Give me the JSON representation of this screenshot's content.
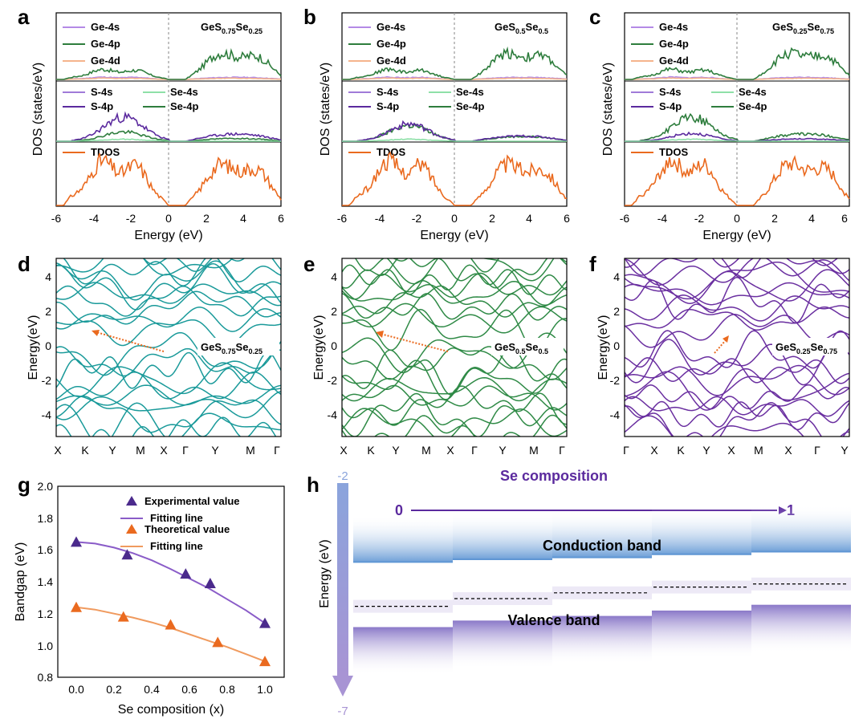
{
  "colors": {
    "ge4s": "#b48ae6",
    "ge4p": "#2e7d3d",
    "ge4d": "#f5b48c",
    "s4s": "#a07ad8",
    "s4p": "#5b2a9e",
    "se4s": "#8ee0a8",
    "se4p": "#2e7d3d",
    "tdos": "#ea6a1f",
    "fermi": "#9a9a9a",
    "band_d": "#1a9a9a",
    "band_e": "#2f8a46",
    "band_f": "#6a2fa0",
    "arrow": "#ea6a1f",
    "exp": "#4b2a8c",
    "expfit": "#8a5cc8",
    "theo": "#ea6a1f",
    "theofit": "#f09a5e",
    "cb": "#6fa0d8",
    "vb": "#8a78c8",
    "axis_h": "#8aa4dc",
    "secomp": "#5b2a9e"
  },
  "panels": {
    "a": {
      "label": "a",
      "formula": {
        "base": "GeS",
        "s1": "0.75",
        "mid": "Se",
        "s2": "0.25"
      }
    },
    "b": {
      "label": "b",
      "formula": {
        "base": "GeS",
        "s1": "0.5",
        "mid": "Se",
        "s2": "0.5"
      }
    },
    "c": {
      "label": "c",
      "formula": {
        "base": "GeS",
        "s1": "0.25",
        "mid": "Se",
        "s2": "0.75"
      }
    },
    "d": {
      "label": "d",
      "formula": {
        "base": "GeS",
        "s1": "0.75",
        "mid": "Se",
        "s2": "0.25"
      }
    },
    "e": {
      "label": "e",
      "formula": {
        "base": "GeS",
        "s1": "0.5",
        "mid": "Se",
        "s2": "0.5"
      }
    },
    "f": {
      "label": "f",
      "formula": {
        "base": "GeS",
        "s1": "0.25",
        "mid": "Se",
        "s2": "0.75"
      }
    },
    "g": {
      "label": "g"
    },
    "h": {
      "label": "h"
    }
  },
  "dos_common": {
    "ylabel": "DOS (states/eV)",
    "xlabel": "Energy (eV)",
    "xticks": [
      "-6",
      "-4",
      "-2",
      "0",
      "2",
      "4",
      "6"
    ],
    "legend_top": [
      "Ge-4s",
      "Ge-4p",
      "Ge-4d"
    ],
    "legend_mid": [
      "S-4s",
      "Se-4s",
      "S-4p",
      "Se-4p"
    ],
    "legend_bot": [
      "TDOS"
    ]
  },
  "band_common": {
    "ylabel": "Energy(eV)",
    "yticks": [
      "4",
      "2",
      "0",
      "-2",
      "-4"
    ],
    "xticks_de": [
      "X",
      "K",
      "Y",
      "M",
      "X",
      "Γ",
      "Y",
      "M",
      "Γ"
    ],
    "xticks_f": [
      "Γ",
      "X",
      "K",
      "Y",
      "X",
      "M",
      "X",
      "Γ",
      "Y"
    ]
  },
  "chart_data": [
    {
      "type": "scatter",
      "panel": "g",
      "xlabel": "Se composition (x)",
      "ylabel": "Bandgap (eV)",
      "xlim": [
        -0.1,
        1.1
      ],
      "ylim": [
        0.8,
        2.0
      ],
      "xticks": [
        "0.0",
        "0.2",
        "0.4",
        "0.6",
        "0.8",
        "1.0"
      ],
      "yticks": [
        "2.0",
        "1.8",
        "1.6",
        "1.4",
        "1.2",
        "1.0",
        "0.8"
      ],
      "series": [
        {
          "name": "Experimental value",
          "x": [
            0.0,
            0.27,
            0.58,
            0.71,
            1.0
          ],
          "y": [
            1.65,
            1.57,
            1.45,
            1.39,
            1.14
          ]
        },
        {
          "name": "Fitting line",
          "fit_for": "Experimental value",
          "x": [
            0.0,
            0.1,
            0.2,
            0.3,
            0.4,
            0.5,
            0.6,
            0.7,
            0.8,
            0.9,
            1.0
          ],
          "y": [
            1.65,
            1.64,
            1.615,
            1.58,
            1.535,
            1.48,
            1.42,
            1.36,
            1.29,
            1.22,
            1.14
          ]
        },
        {
          "name": "Theoretical value",
          "x": [
            0.0,
            0.25,
            0.5,
            0.75,
            1.0
          ],
          "y": [
            1.24,
            1.18,
            1.13,
            1.02,
            0.9
          ]
        },
        {
          "name": "Fitting line",
          "fit_for": "Theoretical value",
          "x": [
            0.0,
            0.1,
            0.2,
            0.3,
            0.4,
            0.5,
            0.6,
            0.7,
            0.8,
            0.9,
            1.0
          ],
          "y": [
            1.24,
            1.225,
            1.2,
            1.175,
            1.145,
            1.11,
            1.07,
            1.03,
            0.99,
            0.945,
            0.9
          ]
        }
      ]
    },
    {
      "type": "diagram",
      "panel": "h",
      "ylabel": "Energy (eV)",
      "ytop": "-2",
      "ybottom": "-7",
      "se_label": "Se composition",
      "se_start": "0",
      "se_end": "1",
      "cb_label": "Conduction band",
      "vb_label": "Valence band",
      "steps": 5,
      "cb_edge": [
        -4.05,
        -3.98,
        -3.93,
        -3.85,
        -3.78
      ],
      "vb_edge": [
        -5.74,
        -5.57,
        -5.45,
        -5.31,
        -5.16
      ],
      "fermi": [
        -5.2,
        -5.0,
        -4.85,
        -4.7,
        -4.62
      ]
    }
  ]
}
